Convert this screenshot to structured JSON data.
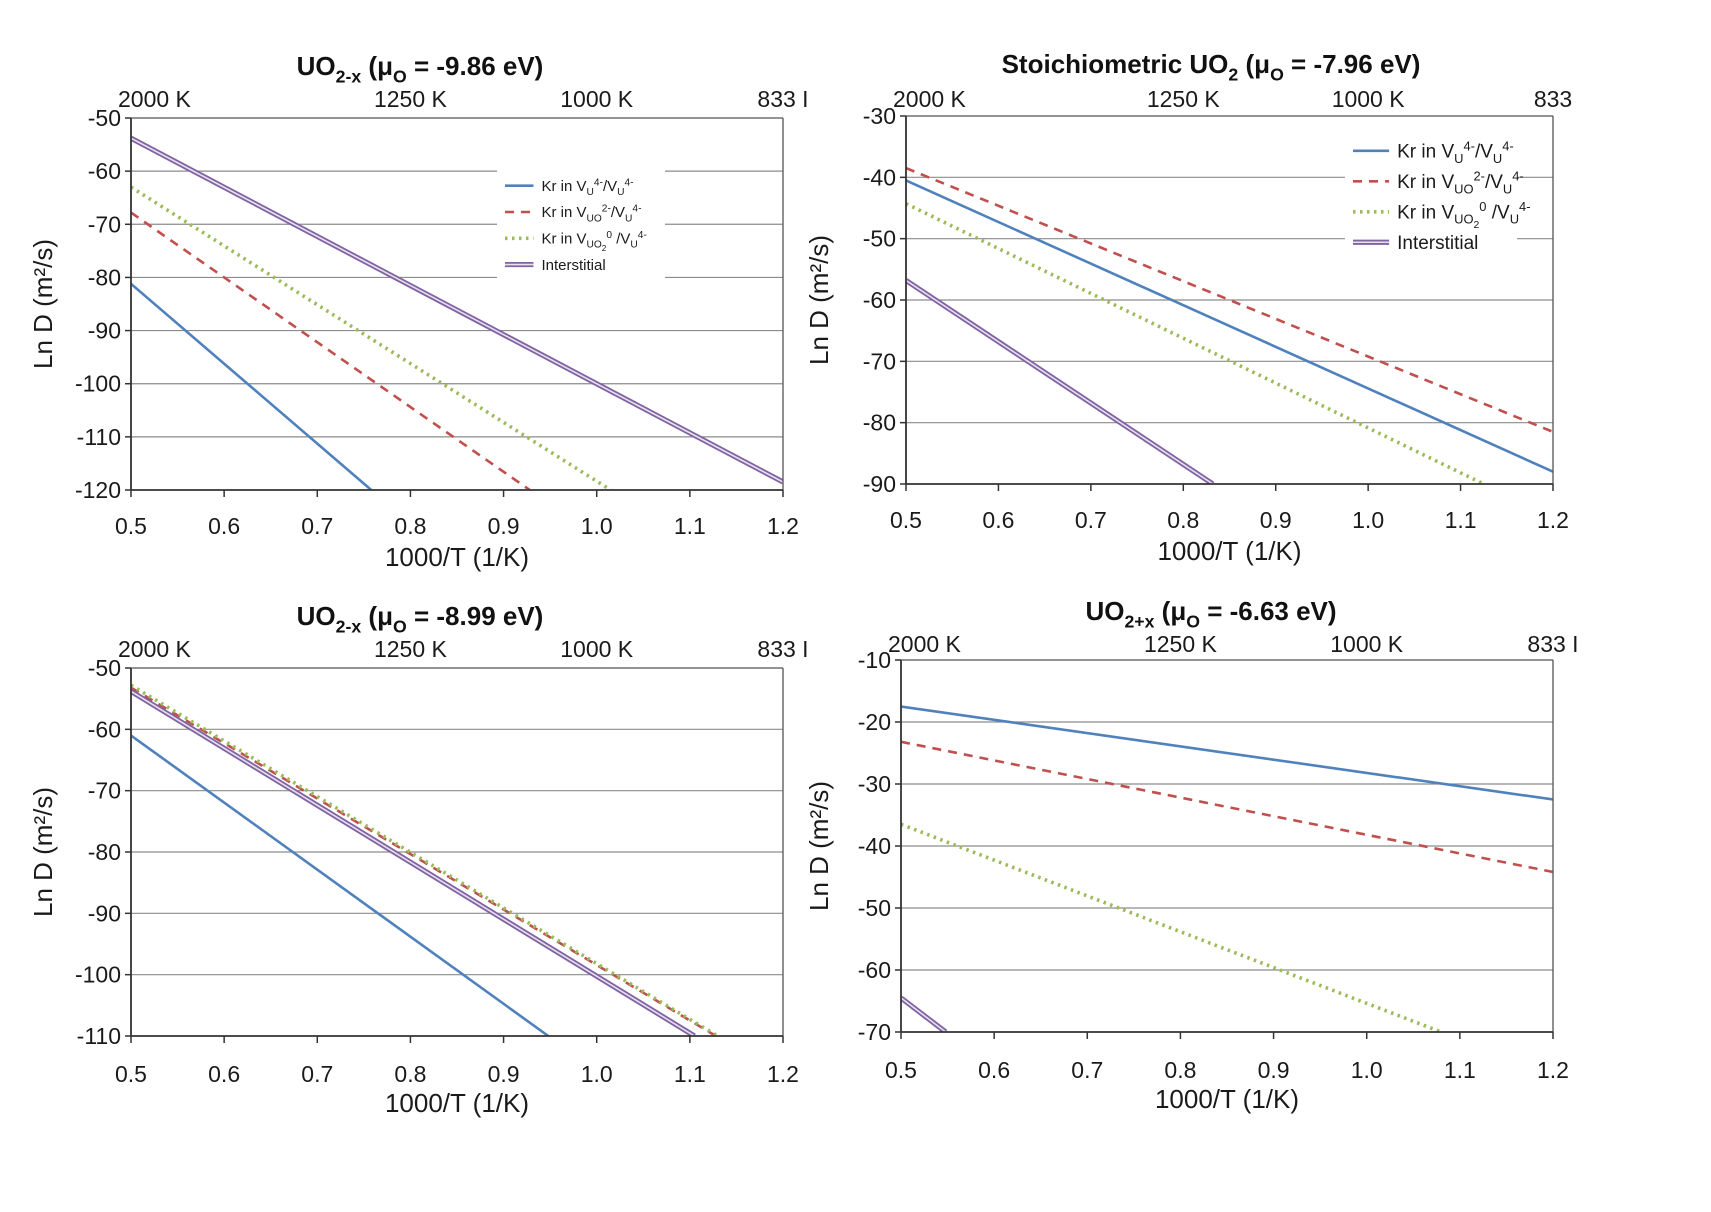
{
  "series_styles": {
    "vu": {
      "color": "#4f81bd",
      "dash": "",
      "width": 2.6,
      "double": false
    },
    "vuo": {
      "color": "#c0504d",
      "dash": "9,7",
      "width": 2.6,
      "double": false
    },
    "vuo2": {
      "color": "#9bbb59",
      "dash": "2.5,4.5",
      "width": 3.6,
      "double": false
    },
    "int": {
      "color": "#8064a2",
      "dash": "",
      "width": 2.2,
      "double": true
    }
  },
  "legend_text": {
    "vu": [
      {
        "t": "Kr in V",
        "s": 0
      },
      {
        "t": "U",
        "s": 1
      },
      {
        "t": "4-",
        "s": -1
      },
      {
        "t": "/V",
        "s": 0
      },
      {
        "t": "U",
        "s": 1
      },
      {
        "t": "4-",
        "s": -1
      }
    ],
    "vuo": [
      {
        "t": "Kr in V",
        "s": 0
      },
      {
        "t": "UO",
        "s": 1
      },
      {
        "t": "2-",
        "s": -1
      },
      {
        "t": "/V",
        "s": 0
      },
      {
        "t": "U",
        "s": 1
      },
      {
        "t": "4-",
        "s": -1
      }
    ],
    "vuo2": [
      {
        "t": "Kr in V",
        "s": 0
      },
      {
        "t": "UO",
        "s": 1
      },
      {
        "t": "2",
        "s": 2
      },
      {
        "t": "0",
        "s": -1
      },
      {
        "t": " /V",
        "s": 0
      },
      {
        "t": "U",
        "s": 1
      },
      {
        "t": "4-",
        "s": -1
      }
    ],
    "int": [
      {
        "t": "Interstitial",
        "s": 0
      }
    ]
  },
  "chart_data": [
    {
      "type": "line",
      "title": [
        {
          "t": "UO",
          "s": 0
        },
        {
          "t": "2-x",
          "s": 1
        },
        {
          "t": " (",
          "s": 0
        },
        {
          "t": "μ",
          "s": 0
        },
        {
          "t": "O",
          "s": 1
        },
        {
          "t": " = -9.86 eV)",
          "s": 0
        }
      ],
      "xlabel": "1000/T (1/K)",
      "ylabel": "Ln D (m²/s)",
      "xlim": [
        0.5,
        1.2
      ],
      "ylim": [
        -120,
        -50
      ],
      "xticks": [
        "0.5",
        "0.6",
        "0.7",
        "0.8",
        "0.9",
        "1.0",
        "1.1",
        "1.2"
      ],
      "yticks": [
        "-50",
        "-60",
        "-70",
        "-80",
        "-90",
        "-100",
        "-110",
        "-120"
      ],
      "secondary_x": [
        {
          "label": "2000 K",
          "x": 0.5
        },
        {
          "label": "1250 K",
          "x": 0.8
        },
        {
          "label": "1000 K",
          "x": 1.0
        },
        {
          "label": "833 I",
          "x": 1.2
        }
      ],
      "grid": true,
      "legend_position": "upper-right",
      "series": [
        {
          "key": "vu",
          "x": [
            0.5,
            0.758
          ],
          "y": [
            -81.2,
            -120
          ]
        },
        {
          "key": "vuo",
          "x": [
            0.5,
            0.928
          ],
          "y": [
            -67.8,
            -120
          ]
        },
        {
          "key": "vuo2",
          "x": [
            0.5,
            1.015
          ],
          "y": [
            -63,
            -120
          ]
        },
        {
          "key": "int",
          "x": [
            0.5,
            1.2
          ],
          "y": [
            -53.8,
            -118.5
          ]
        }
      ]
    },
    {
      "type": "line",
      "title": [
        {
          "t": "Stoichiometric UO",
          "s": 0
        },
        {
          "t": "2",
          "s": 1
        },
        {
          "t": " (",
          "s": 0
        },
        {
          "t": "μ",
          "s": 0
        },
        {
          "t": "O",
          "s": 1
        },
        {
          "t": " = -7.96 eV)",
          "s": 0
        }
      ],
      "xlabel": "1000/T (1/K)",
      "ylabel": "Ln D (m²/s)",
      "xlim": [
        0.5,
        1.2
      ],
      "ylim": [
        -90,
        -30
      ],
      "xticks": [
        "0.5",
        "0.6",
        "0.7",
        "0.8",
        "0.9",
        "1.0",
        "1.1",
        "1.2"
      ],
      "yticks": [
        "-30",
        "-40",
        "-50",
        "-60",
        "-70",
        "-80",
        "-90"
      ],
      "secondary_x": [
        {
          "label": "2000 K",
          "x": 0.5
        },
        {
          "label": "1250 K",
          "x": 0.8
        },
        {
          "label": "1000 K",
          "x": 1.0
        },
        {
          "label": "833",
          "x": 1.2
        }
      ],
      "grid": true,
      "legend_position": "upper-right",
      "series": [
        {
          "key": "vu",
          "x": [
            0.5,
            1.2
          ],
          "y": [
            -40.5,
            -88
          ]
        },
        {
          "key": "vuo",
          "x": [
            0.5,
            1.2
          ],
          "y": [
            -38.5,
            -81.5
          ]
        },
        {
          "key": "vuo2",
          "x": [
            0.5,
            1.125
          ],
          "y": [
            -44.3,
            -90
          ]
        },
        {
          "key": "int",
          "x": [
            0.5,
            0.832
          ],
          "y": [
            -56.8,
            -90
          ]
        }
      ]
    },
    {
      "type": "line",
      "title": [
        {
          "t": "UO",
          "s": 0
        },
        {
          "t": "2-x",
          "s": 1
        },
        {
          "t": " (",
          "s": 0
        },
        {
          "t": "μ",
          "s": 0
        },
        {
          "t": "O",
          "s": 1
        },
        {
          "t": " = -8.99 eV)",
          "s": 0
        }
      ],
      "xlabel": "1000/T (1/K)",
      "ylabel": "Ln D (m²/s)",
      "xlim": [
        0.5,
        1.2
      ],
      "ylim": [
        -110,
        -50
      ],
      "xticks": [
        "0.5",
        "0.6",
        "0.7",
        "0.8",
        "0.9",
        "1.0",
        "1.1",
        "1.2"
      ],
      "yticks": [
        "-50",
        "-60",
        "-70",
        "-80",
        "-90",
        "-100",
        "-110"
      ],
      "secondary_x": [
        {
          "label": "2000 K",
          "x": 0.5
        },
        {
          "label": "1250 K",
          "x": 0.8
        },
        {
          "label": "1000 K",
          "x": 1.0
        },
        {
          "label": "833 I",
          "x": 1.2
        }
      ],
      "grid": true,
      "legend_position": "none",
      "series": [
        {
          "key": "vu",
          "x": [
            0.5,
            0.948
          ],
          "y": [
            -61,
            -110
          ]
        },
        {
          "key": "vuo",
          "x": [
            0.5,
            1.128
          ],
          "y": [
            -53.2,
            -110
          ]
        },
        {
          "key": "vuo2",
          "x": [
            0.5,
            1.13
          ],
          "y": [
            -52.8,
            -110
          ]
        },
        {
          "key": "int",
          "x": [
            0.5,
            1.105
          ],
          "y": [
            -53.8,
            -110
          ]
        }
      ]
    },
    {
      "type": "line",
      "title": [
        {
          "t": "UO",
          "s": 0
        },
        {
          "t": "2+x",
          "s": 1
        },
        {
          "t": " (",
          "s": 0
        },
        {
          "t": "μ",
          "s": 0
        },
        {
          "t": "O",
          "s": 1
        },
        {
          "t": " = -6.63 eV)",
          "s": 0
        }
      ],
      "xlabel": "1000/T (1/K)",
      "ylabel": "Ln D (m²/s)",
      "xlim": [
        0.5,
        1.2
      ],
      "ylim": [
        -70,
        -10
      ],
      "xticks": [
        "0.5",
        "0.6",
        "0.7",
        "0.8",
        "0.9",
        "1.0",
        "1.1",
        "1.2"
      ],
      "yticks": [
        "-10",
        "-20",
        "-30",
        "-40",
        "-50",
        "-60",
        "-70"
      ],
      "secondary_x": [
        {
          "label": "2000 K",
          "x": 0.5
        },
        {
          "label": "1250 K",
          "x": 0.8
        },
        {
          "label": "1000 K",
          "x": 1.0
        },
        {
          "label": "833 I",
          "x": 1.2
        }
      ],
      "grid": true,
      "legend_position": "none",
      "series": [
        {
          "key": "vu",
          "x": [
            0.5,
            1.2
          ],
          "y": [
            -17.5,
            -32.5
          ]
        },
        {
          "key": "vuo",
          "x": [
            0.5,
            1.2
          ],
          "y": [
            -23.2,
            -44.2
          ]
        },
        {
          "key": "vuo2",
          "x": [
            0.5,
            1.08
          ],
          "y": [
            -36.5,
            -70
          ]
        },
        {
          "key": "int",
          "x": [
            0.5,
            0.548
          ],
          "y": [
            -64.5,
            -70
          ]
        }
      ]
    }
  ]
}
